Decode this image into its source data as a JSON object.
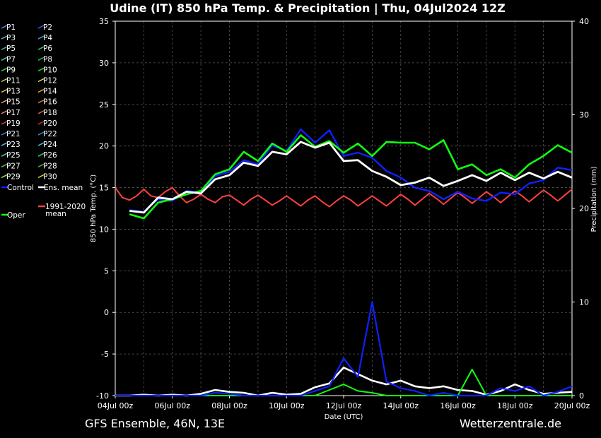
{
  "chart_data": {
    "type": "line",
    "title": "Udine  (IT)  850 hPa Temp. & Precipitation | Thu, 04Jul2024 12Z",
    "xlabel": "Date (UTC)",
    "ylabel_left": "850 hPa Temp. (°C)",
    "ylabel_right": "Precipitation (mm)",
    "ylim_left": [
      -10,
      35
    ],
    "ylim_right": [
      0,
      40
    ],
    "xlim_days": [
      0,
      16
    ],
    "grid": true,
    "x_ticks": [
      "04Jul 00z",
      "06Jul 00z",
      "08Jul 00z",
      "10Jul 00z",
      "12Jul 00z",
      "14Jul 00z",
      "16Jul 00z",
      "18Jul 00z",
      "20Jul 00z"
    ],
    "y_ticks_left": [
      "-10",
      "-5",
      "0",
      "5",
      "10",
      "15",
      "20",
      "25",
      "30",
      "35"
    ],
    "y_ticks_right": [
      "0",
      "10",
      "20",
      "30",
      "40"
    ],
    "footer_left": "GFS Ensemble, 46N, 13E",
    "footer_right": "Wetterzentrale.de",
    "legend": [
      {
        "name": "P1",
        "color": "#4a8cff"
      },
      {
        "name": "P2",
        "color": "#3c5cff"
      },
      {
        "name": "P3",
        "color": "#5fa8d8"
      },
      {
        "name": "P4",
        "color": "#3d9ad0"
      },
      {
        "name": "P5",
        "color": "#40b0a8"
      },
      {
        "name": "P6",
        "color": "#38c070"
      },
      {
        "name": "P7",
        "color": "#48c8a0"
      },
      {
        "name": "P8",
        "color": "#30b060"
      },
      {
        "name": "P9",
        "color": "#40d040"
      },
      {
        "name": "P10",
        "color": "#20e020"
      },
      {
        "name": "P11",
        "color": "#c8e060"
      },
      {
        "name": "P12",
        "color": "#e0e040"
      },
      {
        "name": "P13",
        "color": "#e0c040"
      },
      {
        "name": "P14",
        "color": "#e0a030"
      },
      {
        "name": "P15",
        "color": "#e0a070"
      },
      {
        "name": "P16",
        "color": "#c08040"
      },
      {
        "name": "P17",
        "color": "#e08060"
      },
      {
        "name": "P18",
        "color": "#d06040"
      },
      {
        "name": "P19",
        "color": "#d04040"
      },
      {
        "name": "P20",
        "color": "#c03030"
      },
      {
        "name": "P21",
        "color": "#5080e0"
      },
      {
        "name": "P22",
        "color": "#3090e0"
      },
      {
        "name": "P23",
        "color": "#60b0e0"
      },
      {
        "name": "P24",
        "color": "#40c0d0"
      },
      {
        "name": "P25",
        "color": "#40d0b0"
      },
      {
        "name": "P26",
        "color": "#30c890"
      },
      {
        "name": "P27",
        "color": "#50c050"
      },
      {
        "name": "P28",
        "color": "#40b040"
      },
      {
        "name": "P29",
        "color": "#a0e040"
      },
      {
        "name": "P30",
        "color": "#d0d030"
      },
      {
        "name": "Control",
        "color": "#1020ff"
      },
      {
        "name": "Ens. mean",
        "color": "#ffffff"
      },
      {
        "name": "Oper",
        "color": "#10ff10"
      },
      {
        "name": "1991-2020 mean",
        "color": "#ff4040"
      }
    ],
    "series": [
      {
        "name": "Ens. mean",
        "color": "#ffffff",
        "axis": "left",
        "x": [
          0.5,
          1,
          1.5,
          2,
          2.5,
          3,
          3.5,
          4,
          4.5,
          5,
          5.5,
          6,
          6.5,
          7,
          7.5,
          8,
          8.5,
          9,
          9.5,
          10,
          10.5,
          11,
          11.5,
          12,
          12.5,
          13,
          13.5,
          14,
          14.5,
          15,
          15.5,
          16
        ],
        "y": [
          12.2,
          12,
          13.8,
          13.6,
          14.5,
          14.3,
          16,
          16.5,
          18,
          17.6,
          19.3,
          19,
          20.5,
          19.8,
          20.4,
          18.2,
          18.3,
          17,
          16.3,
          15.3,
          15.6,
          16.2,
          15.2,
          15.8,
          16.5,
          15.8,
          16.8,
          15.9,
          16.8,
          16.1,
          16.9,
          16.2
        ]
      },
      {
        "name": "Oper",
        "color": "#10ff10",
        "axis": "left",
        "x": [
          0.5,
          1,
          1.5,
          2,
          2.5,
          3,
          3.5,
          4,
          4.5,
          5,
          5.5,
          6,
          6.5,
          7,
          7.5,
          8,
          8.5,
          9,
          9.5,
          10,
          10.5,
          11,
          11.5,
          12,
          12.5,
          13,
          13.5,
          14,
          14.5,
          15,
          15.5,
          16
        ],
        "y": [
          11.8,
          11.3,
          13.2,
          13.6,
          14.2,
          14.6,
          16.6,
          17.2,
          19.3,
          18.2,
          20.3,
          19.3,
          21.3,
          19.9,
          20.6,
          19.2,
          20.3,
          18.8,
          20.5,
          20.4,
          20.4,
          19.6,
          20.7,
          17.2,
          17.8,
          16.5,
          17.2,
          16.2,
          17.8,
          18.8,
          20.1,
          19.2
        ]
      },
      {
        "name": "Control",
        "color": "#1020ff",
        "axis": "left",
        "x": [
          0.5,
          1,
          1.5,
          2,
          2.5,
          3,
          3.5,
          4,
          4.5,
          5,
          5.5,
          6,
          6.5,
          7,
          7.5,
          8,
          8.5,
          9,
          9.5,
          10,
          10.5,
          11,
          11.5,
          12,
          12.5,
          13,
          13.5,
          14,
          14.5,
          15,
          15.5,
          16
        ],
        "y": [
          12.3,
          12.1,
          13.6,
          13.4,
          14.6,
          14.4,
          16.4,
          16.9,
          18.3,
          17.8,
          20.1,
          19.4,
          22,
          20.4,
          21.9,
          18.8,
          19.2,
          18.6,
          17,
          16.2,
          15,
          14.6,
          13.6,
          14.5,
          13.7,
          13.4,
          14.4,
          14.2,
          15.5,
          15.9,
          17.4,
          17.1
        ]
      },
      {
        "name": "1991-2020 mean",
        "color": "#ff4040",
        "axis": "left",
        "x": [
          0,
          0.25,
          0.5,
          0.75,
          1,
          1.25,
          1.5,
          1.75,
          2,
          2.25,
          2.5,
          2.75,
          3,
          3.25,
          3.5,
          3.75,
          4,
          4.25,
          4.5,
          4.75,
          5,
          5.25,
          5.5,
          5.75,
          6,
          6.25,
          6.5,
          6.75,
          7,
          7.25,
          7.5,
          7.75,
          8,
          8.25,
          8.5,
          8.75,
          9,
          9.25,
          9.5,
          9.75,
          10,
          10.25,
          10.5,
          10.75,
          11,
          11.25,
          11.5,
          11.75,
          12,
          12.25,
          12.5,
          12.75,
          13,
          13.25,
          13.5,
          13.75,
          14,
          14.25,
          14.5,
          14.75,
          15,
          15.25,
          15.5,
          15.75,
          16
        ],
        "y": [
          15,
          13.8,
          13.5,
          14,
          14.8,
          14,
          13.8,
          14.5,
          15,
          14,
          13.2,
          13.6,
          14.2,
          13.6,
          13.2,
          13.9,
          14.1,
          13.5,
          12.9,
          13.6,
          14.1,
          13.5,
          12.9,
          13.4,
          14,
          13.4,
          12.8,
          13.5,
          14,
          13.3,
          12.7,
          13.4,
          14,
          13.5,
          12.8,
          13.4,
          14,
          13.4,
          12.8,
          13.5,
          14.2,
          13.6,
          12.9,
          13.6,
          14.3,
          13.7,
          13,
          13.7,
          14.4,
          13.8,
          13.1,
          13.8,
          14.5,
          13.9,
          13.2,
          13.9,
          14.6,
          14,
          13.3,
          14,
          14.7,
          14.1,
          13.4,
          14.1,
          14.8
        ]
      },
      {
        "name": "Ens. mean precipitation",
        "color": "#ffffff",
        "axis": "right",
        "x": [
          0,
          0.5,
          1,
          1.5,
          2,
          2.5,
          3,
          3.5,
          4,
          4.5,
          5,
          5.5,
          6,
          6.5,
          7,
          7.5,
          8,
          8.5,
          9,
          9.5,
          10,
          10.5,
          11,
          11.5,
          12,
          12.5,
          13,
          13.5,
          14,
          14.5,
          15,
          15.5,
          16
        ],
        "y": [
          0,
          0,
          0.1,
          0,
          0.1,
          0,
          0.2,
          0.6,
          0.4,
          0.3,
          0,
          0.3,
          0.1,
          0.2,
          0.9,
          1.3,
          3,
          2.3,
          1.6,
          1.2,
          1.6,
          1,
          0.8,
          1,
          0.6,
          0.5,
          0.1,
          0.5,
          1.2,
          0.6,
          0.2,
          0.3,
          0.4
        ]
      },
      {
        "name": "Control precipitation",
        "color": "#1020ff",
        "axis": "right",
        "x": [
          0,
          0.5,
          1,
          1.5,
          2,
          2.5,
          3,
          3.5,
          4,
          4.5,
          5,
          5.5,
          6,
          6.5,
          7,
          7.5,
          8,
          8.5,
          9,
          9.5,
          10,
          10.5,
          11,
          11.5,
          12,
          12.5,
          13,
          13.5,
          14,
          14.5,
          15,
          15.5,
          16
        ],
        "y": [
          0,
          0,
          0,
          0,
          0,
          0,
          0,
          0.3,
          0.2,
          0,
          0,
          0,
          0,
          0,
          0.5,
          1,
          4,
          2,
          10,
          1.5,
          0.8,
          0.5,
          0,
          0.3,
          0,
          0,
          0,
          0.8,
          0.5,
          1,
          0,
          0.4,
          1
        ]
      },
      {
        "name": "Oper precipitation",
        "color": "#10ff10",
        "axis": "right",
        "x": [
          0,
          0.5,
          1,
          1.5,
          2,
          2.5,
          3,
          3.5,
          4,
          4.5,
          5,
          5.5,
          6,
          6.5,
          7,
          7.5,
          8,
          8.5,
          9,
          9.5,
          10,
          10.5,
          11,
          11.5,
          12,
          12.5,
          13,
          13.5,
          14,
          14.5,
          15,
          15.5,
          16
        ],
        "y": [
          0,
          0,
          0,
          0,
          0,
          0,
          0,
          0,
          0,
          0,
          0,
          0,
          0,
          0,
          0,
          0.6,
          1.2,
          0.5,
          0.3,
          0,
          0,
          0,
          0,
          0,
          0,
          2.8,
          0,
          0,
          0,
          0,
          0,
          0,
          0
        ]
      }
    ]
  }
}
